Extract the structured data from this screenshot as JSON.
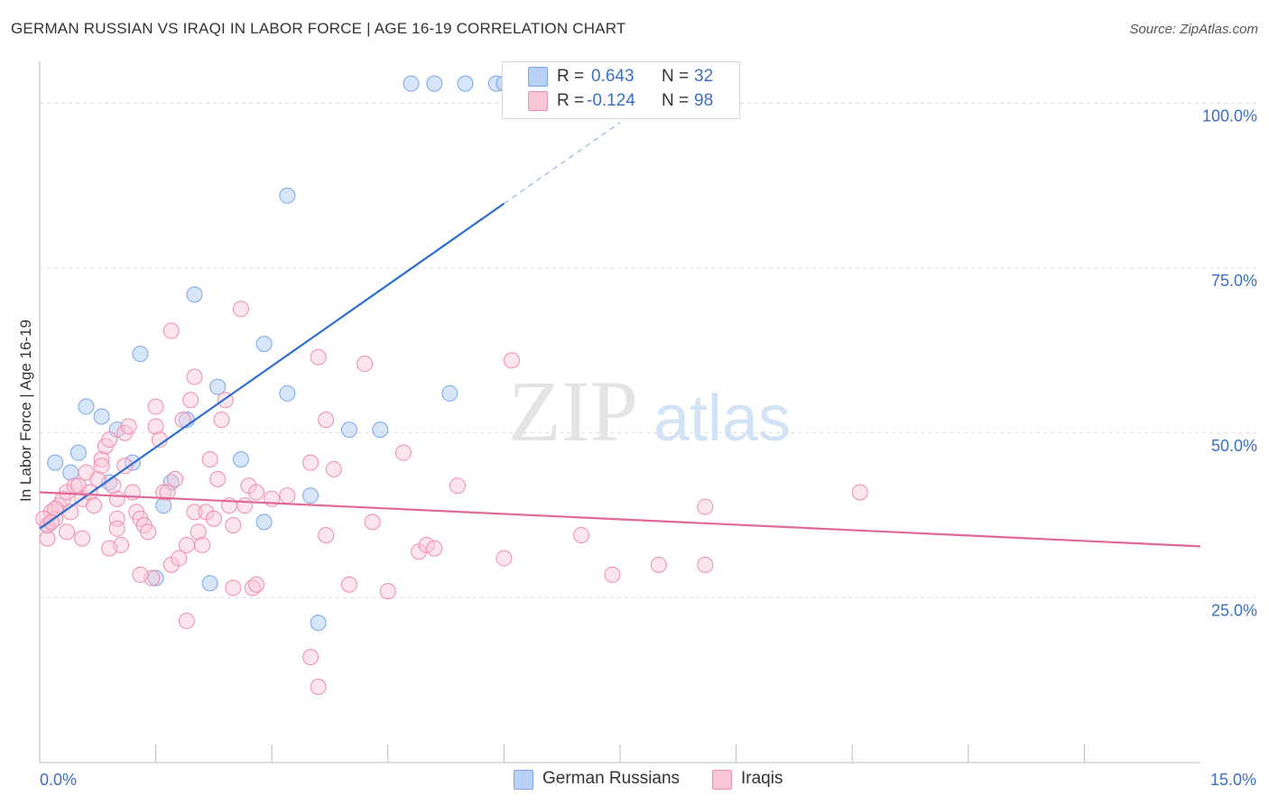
{
  "header": {
    "title": "GERMAN RUSSIAN VS IRAQI IN LABOR FORCE | AGE 16-19 CORRELATION CHART",
    "source": "Source: ZipAtlas.com"
  },
  "watermark": {
    "zip": "ZIP",
    "atlas": "atlas"
  },
  "legend": {
    "r_label": "R =",
    "n_label": "N =",
    "rows": [
      {
        "r": "0.643",
        "n": "32",
        "color": "#7aa6e8"
      },
      {
        "r": "-0.124",
        "n": "98",
        "color": "#f08bab"
      }
    ]
  },
  "bottom_legend": [
    {
      "label": "German Russians",
      "color": "#7aa6e8"
    },
    {
      "label": "Iraqis",
      "color": "#f08bab"
    }
  ],
  "chart_data": {
    "type": "scatter",
    "ylabel": "In Labor Force | Age 16-19",
    "xlim": [
      0,
      15
    ],
    "ylim": [
      0,
      105
    ],
    "x_tick_labels": [
      {
        "value": 0,
        "label": "0.0%"
      },
      {
        "value": 15,
        "label": "15.0%"
      }
    ],
    "y_tick_labels": [
      {
        "value": 25,
        "label": "25.0%"
      },
      {
        "value": 50,
        "label": "50.0%"
      },
      {
        "value": 75,
        "label": "75.0%"
      },
      {
        "value": 100,
        "label": "100.0%"
      }
    ],
    "x_minor_ticks": [
      1.5,
      3.0,
      4.5,
      6.0,
      7.5,
      9.0,
      10.5,
      12.0,
      13.5
    ],
    "grid": true,
    "series": [
      {
        "name": "German Russians",
        "color": "#7aa6e8",
        "trend_color": "#2b6fd1",
        "trend": {
          "x0": 0.0,
          "y0": 35.5,
          "x1": 6.0,
          "y1": 84.8,
          "dash_to_x": 7.5,
          "dash_to_y": 97.1
        },
        "points": [
          [
            4.8,
            103
          ],
          [
            5.1,
            103
          ],
          [
            5.5,
            103
          ],
          [
            5.9,
            103
          ],
          [
            6.0,
            103
          ],
          [
            3.2,
            86
          ],
          [
            2.0,
            71
          ],
          [
            1.3,
            62
          ],
          [
            2.9,
            63.5
          ],
          [
            2.3,
            57
          ],
          [
            3.2,
            56
          ],
          [
            5.3,
            56
          ],
          [
            0.6,
            54
          ],
          [
            0.8,
            52.5
          ],
          [
            1.0,
            50.5
          ],
          [
            1.9,
            52
          ],
          [
            4.4,
            50.5
          ],
          [
            4.0,
            50.5
          ],
          [
            0.2,
            45.5
          ],
          [
            0.5,
            47
          ],
          [
            1.2,
            45.5
          ],
          [
            2.6,
            46
          ],
          [
            0.4,
            44
          ],
          [
            0.9,
            42.5
          ],
          [
            1.7,
            42.5
          ],
          [
            3.5,
            40.5
          ],
          [
            1.6,
            39
          ],
          [
            2.9,
            36.5
          ],
          [
            1.5,
            28
          ],
          [
            2.2,
            27.2
          ],
          [
            3.6,
            21.2
          ],
          [
            0.1,
            36
          ]
        ]
      },
      {
        "name": "Iraqis",
        "color": "#f08bab",
        "trend_color": "#e0699a",
        "trend": {
          "x0": 0.0,
          "y0": 41.0,
          "x1": 15.0,
          "y1": 32.8
        },
        "points": [
          [
            0.1,
            34
          ],
          [
            0.1,
            36
          ],
          [
            0.15,
            38
          ],
          [
            0.2,
            37
          ],
          [
            0.25,
            39
          ],
          [
            0.3,
            40
          ],
          [
            0.35,
            41
          ],
          [
            0.4,
            38
          ],
          [
            0.45,
            42
          ],
          [
            0.5,
            42
          ],
          [
            0.55,
            40
          ],
          [
            0.6,
            44
          ],
          [
            0.65,
            41
          ],
          [
            0.7,
            39
          ],
          [
            0.75,
            43
          ],
          [
            0.8,
            46
          ],
          [
            0.85,
            48
          ],
          [
            0.9,
            49
          ],
          [
            0.95,
            42
          ],
          [
            1.0,
            37
          ],
          [
            1.0,
            40
          ],
          [
            1.05,
            33
          ],
          [
            1.1,
            45
          ],
          [
            1.1,
            50
          ],
          [
            1.15,
            51
          ],
          [
            1.2,
            41
          ],
          [
            1.25,
            38
          ],
          [
            1.3,
            37
          ],
          [
            1.35,
            36
          ],
          [
            1.4,
            35
          ],
          [
            1.45,
            28
          ],
          [
            1.5,
            54
          ],
          [
            1.5,
            51
          ],
          [
            1.55,
            49
          ],
          [
            1.6,
            41
          ],
          [
            1.65,
            41
          ],
          [
            1.7,
            30
          ],
          [
            1.7,
            65.5
          ],
          [
            1.75,
            43
          ],
          [
            1.8,
            31
          ],
          [
            1.85,
            52
          ],
          [
            1.9,
            33
          ],
          [
            1.9,
            21.5
          ],
          [
            1.95,
            55
          ],
          [
            2.0,
            58.5
          ],
          [
            2.0,
            38
          ],
          [
            2.05,
            35
          ],
          [
            2.1,
            33
          ],
          [
            2.15,
            38
          ],
          [
            2.2,
            46
          ],
          [
            2.25,
            37
          ],
          [
            2.3,
            43
          ],
          [
            2.35,
            52
          ],
          [
            2.4,
            55
          ],
          [
            2.45,
            39
          ],
          [
            2.5,
            36
          ],
          [
            2.5,
            26.5
          ],
          [
            2.6,
            68.8
          ],
          [
            2.65,
            39
          ],
          [
            2.7,
            42
          ],
          [
            2.75,
            26.5
          ],
          [
            2.8,
            27
          ],
          [
            3.0,
            40
          ],
          [
            3.2,
            40.5
          ],
          [
            3.5,
            45.5
          ],
          [
            3.5,
            16
          ],
          [
            3.6,
            61.5
          ],
          [
            3.6,
            11.5
          ],
          [
            3.7,
            52
          ],
          [
            3.7,
            34.5
          ],
          [
            3.8,
            44.5
          ],
          [
            4.0,
            27
          ],
          [
            4.2,
            60.5
          ],
          [
            4.3,
            36.5
          ],
          [
            4.5,
            26
          ],
          [
            4.7,
            47
          ],
          [
            4.9,
            32
          ],
          [
            5.0,
            33
          ],
          [
            5.1,
            32.5
          ],
          [
            5.4,
            42
          ],
          [
            6.0,
            31
          ],
          [
            6.1,
            61
          ],
          [
            7.0,
            34.5
          ],
          [
            7.4,
            28.5
          ],
          [
            8.0,
            30
          ],
          [
            8.6,
            38.8
          ],
          [
            8.6,
            30
          ],
          [
            10.6,
            41
          ],
          [
            0.35,
            35
          ],
          [
            0.2,
            38.5
          ],
          [
            0.55,
            34
          ],
          [
            0.9,
            32.5
          ],
          [
            1.3,
            28.5
          ],
          [
            0.05,
            37
          ],
          [
            0.15,
            36.5
          ],
          [
            1.0,
            35.5
          ],
          [
            2.8,
            41
          ],
          [
            0.8,
            45
          ]
        ]
      }
    ]
  }
}
